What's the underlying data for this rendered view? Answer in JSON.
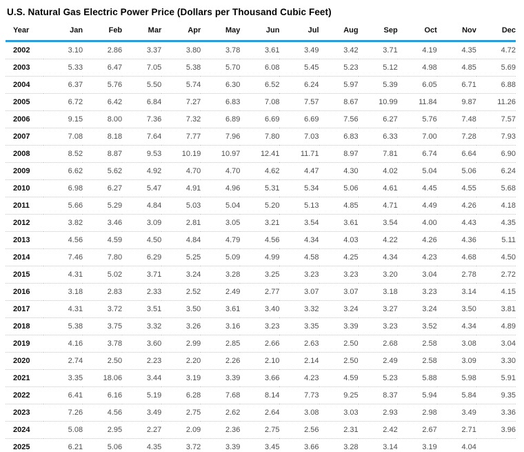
{
  "page": {
    "title": "U.S. Natural Gas Electric Power Price (Dollars per Thousand Cubic Feet)"
  },
  "colors": {
    "accent_blue": "#2b9cd8",
    "row_divider": "#c6c6c6",
    "value_text": "#4d4d4d",
    "year_text": "#0d0d0d",
    "header_text": "#111111"
  },
  "chart_data": {
    "type": "table",
    "title": "U.S. Natural Gas Electric Power Price (Dollars per Thousand Cubic Feet)",
    "columns": [
      "Year",
      "Jan",
      "Feb",
      "Mar",
      "Apr",
      "May",
      "Jun",
      "Jul",
      "Aug",
      "Sep",
      "Oct",
      "Nov",
      "Dec"
    ],
    "rows": [
      {
        "year": "2002",
        "values": [
          "3.10",
          "2.86",
          "3.37",
          "3.80",
          "3.78",
          "3.61",
          "3.49",
          "3.42",
          "3.71",
          "4.19",
          "4.35",
          "4.72"
        ]
      },
      {
        "year": "2003",
        "values": [
          "5.33",
          "6.47",
          "7.05",
          "5.38",
          "5.70",
          "6.08",
          "5.45",
          "5.23",
          "5.12",
          "4.98",
          "4.85",
          "5.69"
        ]
      },
      {
        "year": "2004",
        "values": [
          "6.37",
          "5.76",
          "5.50",
          "5.74",
          "6.30",
          "6.52",
          "6.24",
          "5.97",
          "5.39",
          "6.05",
          "6.71",
          "6.88"
        ]
      },
      {
        "year": "2005",
        "values": [
          "6.72",
          "6.42",
          "6.84",
          "7.27",
          "6.83",
          "7.08",
          "7.57",
          "8.67",
          "10.99",
          "11.84",
          "9.87",
          "11.26"
        ]
      },
      {
        "year": "2006",
        "values": [
          "9.15",
          "8.00",
          "7.36",
          "7.32",
          "6.89",
          "6.69",
          "6.69",
          "7.56",
          "6.27",
          "5.76",
          "7.48",
          "7.57"
        ]
      },
      {
        "year": "2007",
        "values": [
          "7.08",
          "8.18",
          "7.64",
          "7.77",
          "7.96",
          "7.80",
          "7.03",
          "6.83",
          "6.33",
          "7.00",
          "7.28",
          "7.93"
        ]
      },
      {
        "year": "2008",
        "values": [
          "8.52",
          "8.87",
          "9.53",
          "10.19",
          "10.97",
          "12.41",
          "11.71",
          "8.97",
          "7.81",
          "6.74",
          "6.64",
          "6.90"
        ]
      },
      {
        "year": "2009",
        "values": [
          "6.62",
          "5.62",
          "4.92",
          "4.70",
          "4.70",
          "4.62",
          "4.47",
          "4.30",
          "4.02",
          "5.04",
          "5.06",
          "6.24"
        ]
      },
      {
        "year": "2010",
        "values": [
          "6.98",
          "6.27",
          "5.47",
          "4.91",
          "4.96",
          "5.31",
          "5.34",
          "5.06",
          "4.61",
          "4.45",
          "4.55",
          "5.68"
        ]
      },
      {
        "year": "2011",
        "values": [
          "5.66",
          "5.29",
          "4.84",
          "5.03",
          "5.04",
          "5.20",
          "5.13",
          "4.85",
          "4.71",
          "4.49",
          "4.26",
          "4.18"
        ]
      },
      {
        "year": "2012",
        "values": [
          "3.82",
          "3.46",
          "3.09",
          "2.81",
          "3.05",
          "3.21",
          "3.54",
          "3.61",
          "3.54",
          "4.00",
          "4.43",
          "4.35"
        ]
      },
      {
        "year": "2013",
        "values": [
          "4.56",
          "4.59",
          "4.50",
          "4.84",
          "4.79",
          "4.56",
          "4.34",
          "4.03",
          "4.22",
          "4.26",
          "4.36",
          "5.11"
        ]
      },
      {
        "year": "2014",
        "values": [
          "7.46",
          "7.80",
          "6.29",
          "5.25",
          "5.09",
          "4.99",
          "4.58",
          "4.25",
          "4.34",
          "4.23",
          "4.68",
          "4.50"
        ]
      },
      {
        "year": "2015",
        "values": [
          "4.31",
          "5.02",
          "3.71",
          "3.24",
          "3.28",
          "3.25",
          "3.23",
          "3.23",
          "3.20",
          "3.04",
          "2.78",
          "2.72"
        ]
      },
      {
        "year": "2016",
        "values": [
          "3.18",
          "2.83",
          "2.33",
          "2.52",
          "2.49",
          "2.77",
          "3.07",
          "3.07",
          "3.18",
          "3.23",
          "3.14",
          "4.15"
        ]
      },
      {
        "year": "2017",
        "values": [
          "4.31",
          "3.72",
          "3.51",
          "3.50",
          "3.61",
          "3.40",
          "3.32",
          "3.24",
          "3.27",
          "3.24",
          "3.50",
          "3.81"
        ]
      },
      {
        "year": "2018",
        "values": [
          "5.38",
          "3.75",
          "3.32",
          "3.26",
          "3.16",
          "3.23",
          "3.35",
          "3.39",
          "3.23",
          "3.52",
          "4.34",
          "4.89"
        ]
      },
      {
        "year": "2019",
        "values": [
          "4.16",
          "3.78",
          "3.60",
          "2.99",
          "2.85",
          "2.66",
          "2.63",
          "2.50",
          "2.68",
          "2.58",
          "3.08",
          "3.04"
        ]
      },
      {
        "year": "2020",
        "values": [
          "2.74",
          "2.50",
          "2.23",
          "2.20",
          "2.26",
          "2.10",
          "2.14",
          "2.50",
          "2.49",
          "2.58",
          "3.09",
          "3.30"
        ]
      },
      {
        "year": "2021",
        "values": [
          "3.35",
          "18.06",
          "3.44",
          "3.19",
          "3.39",
          "3.66",
          "4.23",
          "4.59",
          "5.23",
          "5.88",
          "5.98",
          "5.91"
        ]
      },
      {
        "year": "2022",
        "values": [
          "6.41",
          "6.16",
          "5.19",
          "6.28",
          "7.68",
          "8.14",
          "7.73",
          "9.25",
          "8.37",
          "5.94",
          "5.84",
          "9.35"
        ]
      },
      {
        "year": "2023",
        "values": [
          "7.26",
          "4.56",
          "3.49",
          "2.75",
          "2.62",
          "2.64",
          "3.08",
          "3.03",
          "2.93",
          "2.98",
          "3.49",
          "3.36"
        ]
      },
      {
        "year": "2024",
        "values": [
          "5.08",
          "2.95",
          "2.27",
          "2.09",
          "2.36",
          "2.75",
          "2.56",
          "2.31",
          "2.42",
          "2.67",
          "2.71",
          "3.96"
        ]
      },
      {
        "year": "2025",
        "values": [
          "6.21",
          "5.06",
          "4.35",
          "3.72",
          "3.39",
          "3.45",
          "3.66",
          "3.28",
          "3.14",
          "3.19",
          "4.04",
          ""
        ]
      }
    ]
  }
}
